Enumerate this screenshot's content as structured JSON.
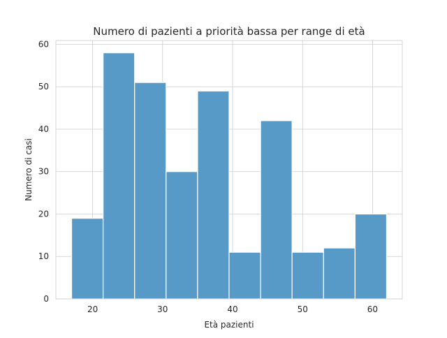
{
  "chart_data": {
    "type": "bar",
    "title": "Numero di pazienti a priorità bassa per range di età",
    "xlabel": "Età pazienti",
    "ylabel": "Numero di casi",
    "bin_edges": [
      17,
      21.5,
      26,
      30.5,
      35,
      39.5,
      44,
      48.5,
      53,
      57.5,
      62
    ],
    "values": [
      19,
      58,
      51,
      30,
      49,
      11,
      42,
      11,
      12,
      20
    ],
    "xlim": [
      14.75,
      64.25
    ],
    "ylim": [
      0,
      60.9
    ],
    "xticks": [
      20,
      30,
      40,
      50,
      60
    ],
    "yticks": [
      0,
      10,
      20,
      30,
      40,
      50,
      60
    ],
    "grid": true,
    "bar_color": "#5799c7",
    "edge_color": "#ffffff"
  }
}
